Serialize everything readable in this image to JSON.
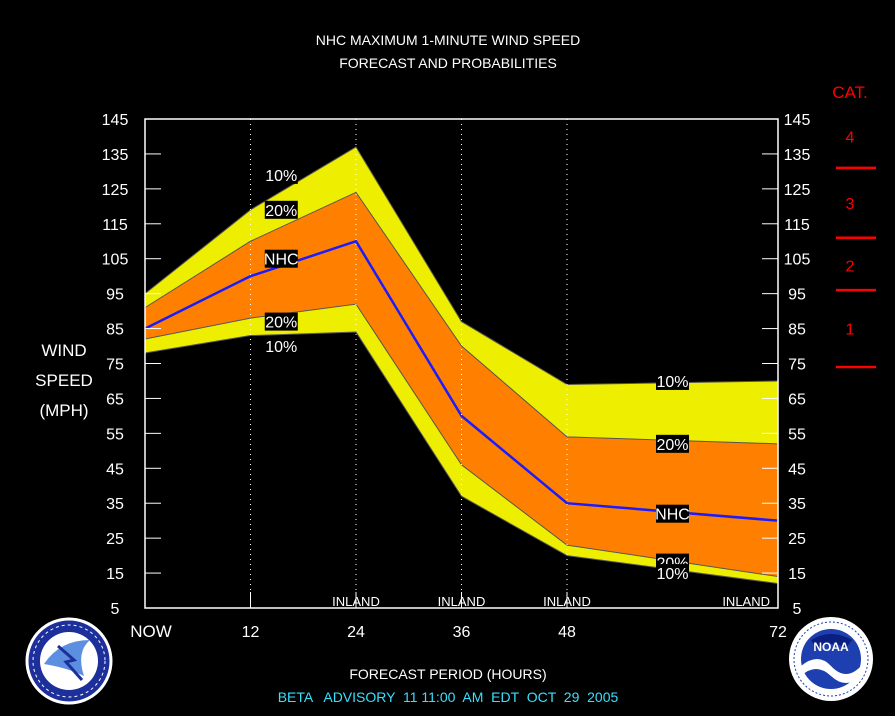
{
  "chart_data": {
    "type": "area",
    "title": "NHC MAXIMUM 1-MINUTE WIND SPEED",
    "subtitle": "FORECAST AND PROBABILITIES",
    "xlabel": "FORECAST PERIOD (HOURS)",
    "ylabel_lines": [
      "WIND",
      "SPEED",
      "(MPH)"
    ],
    "advisory": "BETA   ADVISORY  11 11:00  AM  EDT  OCT  29  2005",
    "xlim": [
      0,
      72
    ],
    "ylim": [
      5,
      145
    ],
    "x_ticks": [
      {
        "x": 0,
        "label": "NOW"
      },
      {
        "x": 12,
        "label": "12"
      },
      {
        "x": 24,
        "label": "24"
      },
      {
        "x": 36,
        "label": "36"
      },
      {
        "x": 48,
        "label": "48"
      },
      {
        "x": 72,
        "label": "72"
      }
    ],
    "y_ticks": [
      5,
      15,
      25,
      35,
      45,
      55,
      65,
      75,
      85,
      95,
      105,
      115,
      125,
      135,
      145
    ],
    "inland_label": "INLAND",
    "inland_x": [
      24,
      36,
      48,
      72
    ],
    "x": [
      0,
      12,
      24,
      36,
      48,
      72
    ],
    "series": [
      {
        "name": "10%",
        "role": "upper",
        "values": [
          95,
          119,
          137,
          87,
          69,
          70
        ],
        "label_x": 15.5
      },
      {
        "name": "20%",
        "role": "upper",
        "values": [
          91,
          110,
          124,
          80,
          54,
          52
        ],
        "label_x": 15.5
      },
      {
        "name": "NHC",
        "role": "forecast",
        "values": [
          85,
          100,
          110,
          60,
          35,
          30
        ],
        "label_x": 15.5
      },
      {
        "name": "20%",
        "role": "lower",
        "values": [
          82,
          88,
          92,
          46,
          23,
          14
        ],
        "label_x": 15.5
      },
      {
        "name": "10%",
        "role": "lower",
        "values": [
          78,
          83,
          84,
          37,
          20,
          12
        ],
        "label_x": 15.5
      }
    ],
    "right_labels": [
      {
        "x": 60,
        "text": "10%",
        "y": 70
      },
      {
        "x": 60,
        "text": "20%",
        "y": 52
      },
      {
        "x": 60,
        "text": "NHC",
        "y": 32
      },
      {
        "x": 60,
        "text": "20%",
        "y": 18
      },
      {
        "x": 60,
        "text": "10%",
        "y": 15
      }
    ],
    "categories_scale": {
      "title": "CAT.",
      "thresholds": [
        74,
        96,
        111,
        131
      ],
      "labels": [
        {
          "text": "1",
          "y": 85
        },
        {
          "text": "2",
          "y": 103
        },
        {
          "text": "3",
          "y": 121
        },
        {
          "text": "4",
          "y": 140
        }
      ]
    },
    "colors": {
      "outer_band": "#eeee00",
      "inner_band": "#ff8000",
      "forecast_line": "#1b1bff",
      "category": "#ff0000",
      "advisory_text": "#38e0ff",
      "plot_border": "#ffffff"
    },
    "grid": false,
    "legend": "inline"
  }
}
